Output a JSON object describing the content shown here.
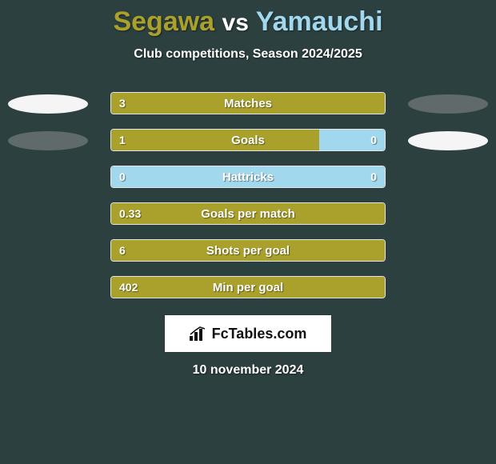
{
  "background_color": "#2d4040",
  "title": {
    "player1": "Segawa",
    "vs": "vs",
    "player2": "Yamauchi",
    "p1_color": "#a9a12c",
    "p2_color": "#a2d8ee",
    "fontsize": 34
  },
  "subtitle": "Club competitions, Season 2024/2025",
  "side_ellipse": {
    "left_color": "#f5f5f5",
    "right_color": "#606a6a",
    "width": 100,
    "height": 24
  },
  "bar": {
    "track_border": "#e5e5e5",
    "left_fill_color": "#a9a12c",
    "right_fill_color": "#a2d8ee",
    "track_width": 344,
    "track_height": 28,
    "label_fontsize": 15,
    "value_fontsize": 14
  },
  "stats": [
    {
      "label": "Matches",
      "left_val": "3",
      "right_val": "",
      "left_pct": 100,
      "right_pct": 0,
      "show_side_ellipses": true,
      "left_ellipse_color": "#f5f5f5",
      "right_ellipse_color": "#606a6a"
    },
    {
      "label": "Goals",
      "left_val": "1",
      "right_val": "0",
      "left_pct": 76,
      "right_pct": 24,
      "show_side_ellipses": true,
      "left_ellipse_color": "#606a6a",
      "right_ellipse_color": "#f5f5f5"
    },
    {
      "label": "Hattricks",
      "left_val": "0",
      "right_val": "0",
      "left_pct": 0,
      "right_pct": 100,
      "show_side_ellipses": false
    },
    {
      "label": "Goals per match",
      "left_val": "0.33",
      "right_val": "",
      "left_pct": 100,
      "right_pct": 0,
      "show_side_ellipses": false
    },
    {
      "label": "Shots per goal",
      "left_val": "6",
      "right_val": "",
      "left_pct": 100,
      "right_pct": 0,
      "show_side_ellipses": false
    },
    {
      "label": "Min per goal",
      "left_val": "402",
      "right_val": "",
      "left_pct": 100,
      "right_pct": 0,
      "show_side_ellipses": false
    }
  ],
  "brand": {
    "text": "FcTables.com",
    "background": "#ffffff",
    "text_color": "#111111",
    "fontsize": 18
  },
  "date": "10 november 2024"
}
